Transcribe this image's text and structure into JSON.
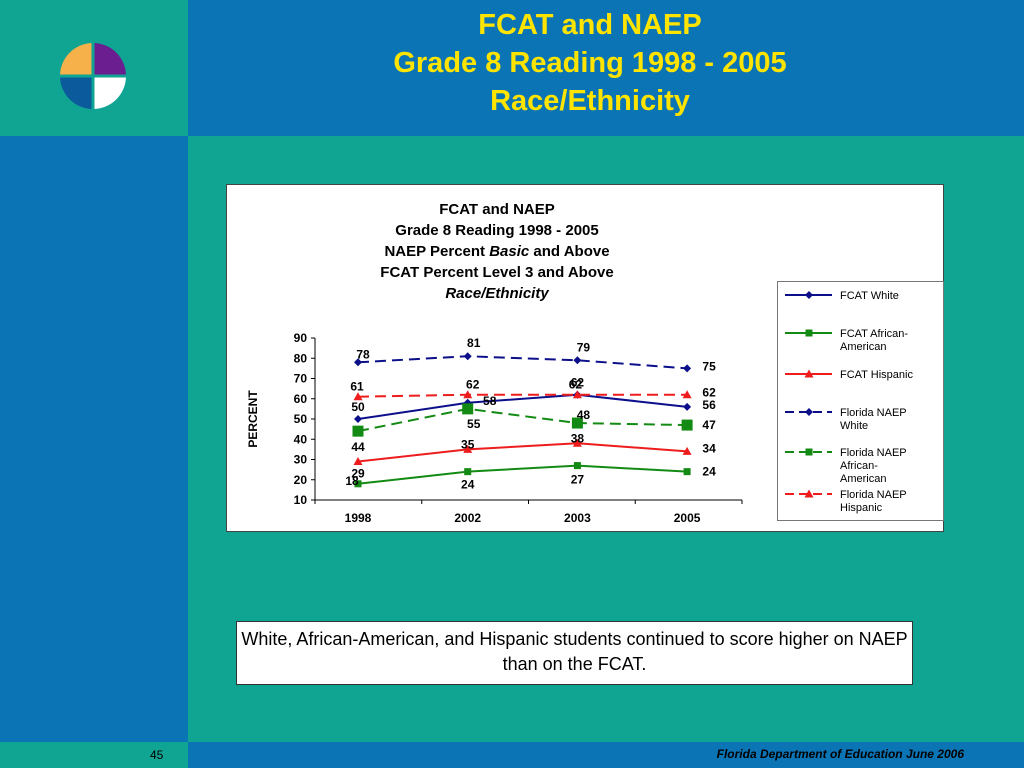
{
  "slide": {
    "title_lines": [
      "FCAT and NAEP",
      "Grade 8 Reading 1998 - 2005",
      "Race/Ethnicity"
    ],
    "caption": "White, African-American, and Hispanic students continued to score higher on NAEP than on the FCAT.",
    "page_number": "45",
    "footer": "Florida Department of Education June 2006"
  },
  "colors": {
    "teal": "#10a493",
    "blue": "#0b74b4",
    "title_yellow": "#ffe400",
    "navy": "#0c0f8a",
    "green": "#138a13",
    "red": "#ee1c1c"
  },
  "chart_data": {
    "type": "line",
    "title_lines": [
      "FCAT and NAEP",
      "Grade 8 Reading 1998 - 2005",
      "NAEP Percent",
      "Basic",
      "and Above",
      "FCAT Percent Level 3 and Above",
      "Race/Ethnicity"
    ],
    "ylabel": "PERCENT",
    "xlabel": "",
    "categories": [
      "1998",
      "2002",
      "2003",
      "2005"
    ],
    "ylim": [
      10,
      90
    ],
    "yticks": [
      10,
      20,
      30,
      40,
      50,
      60,
      70,
      80,
      90
    ],
    "grid": false,
    "legend_position": "right",
    "series": [
      {
        "name": "FCAT White",
        "values": [
          50,
          58,
          62,
          56
        ],
        "color": "#0c0f8a",
        "dash": false,
        "marker": "diamond",
        "labels": [
          "50",
          "58",
          "62",
          "56"
        ]
      },
      {
        "name": "FCAT African-American",
        "values": [
          18,
          24,
          27,
          24
        ],
        "color": "#138a13",
        "dash": false,
        "marker": "square",
        "labels": [
          "18",
          "24",
          "27",
          "24"
        ]
      },
      {
        "name": "FCAT Hispanic",
        "values": [
          29,
          35,
          38,
          34
        ],
        "color": "#ee1c1c",
        "dash": false,
        "marker": "triangle",
        "labels": [
          "29",
          "35",
          "38",
          "34"
        ]
      },
      {
        "name": "Florida NAEP White",
        "values": [
          78,
          81,
          79,
          75
        ],
        "color": "#0c0f8a",
        "dash": true,
        "marker": "diamond",
        "labels": [
          "78",
          "81",
          "79",
          "75"
        ]
      },
      {
        "name": "Florida NAEP African-American",
        "values": [
          44,
          55,
          48,
          47
        ],
        "color": "#138a13",
        "dash": true,
        "marker": "square-large",
        "labels": [
          "44",
          "55",
          "48",
          "47"
        ]
      },
      {
        "name": "Florida NAEP Hispanic",
        "values": [
          61,
          62,
          62,
          62
        ],
        "color": "#ee1c1c",
        "dash": true,
        "marker": "triangle",
        "labels": [
          "61",
          "62",
          "62",
          "62"
        ]
      }
    ],
    "legend": [
      [
        "FCAT White"
      ],
      [
        "FCAT African-",
        "American"
      ],
      [
        "FCAT Hispanic"
      ],
      [
        "Florida NAEP",
        "White"
      ],
      [
        "Florida NAEP",
        "African-",
        "American"
      ],
      [
        "Florida NAEP",
        "Hispanic"
      ]
    ]
  }
}
